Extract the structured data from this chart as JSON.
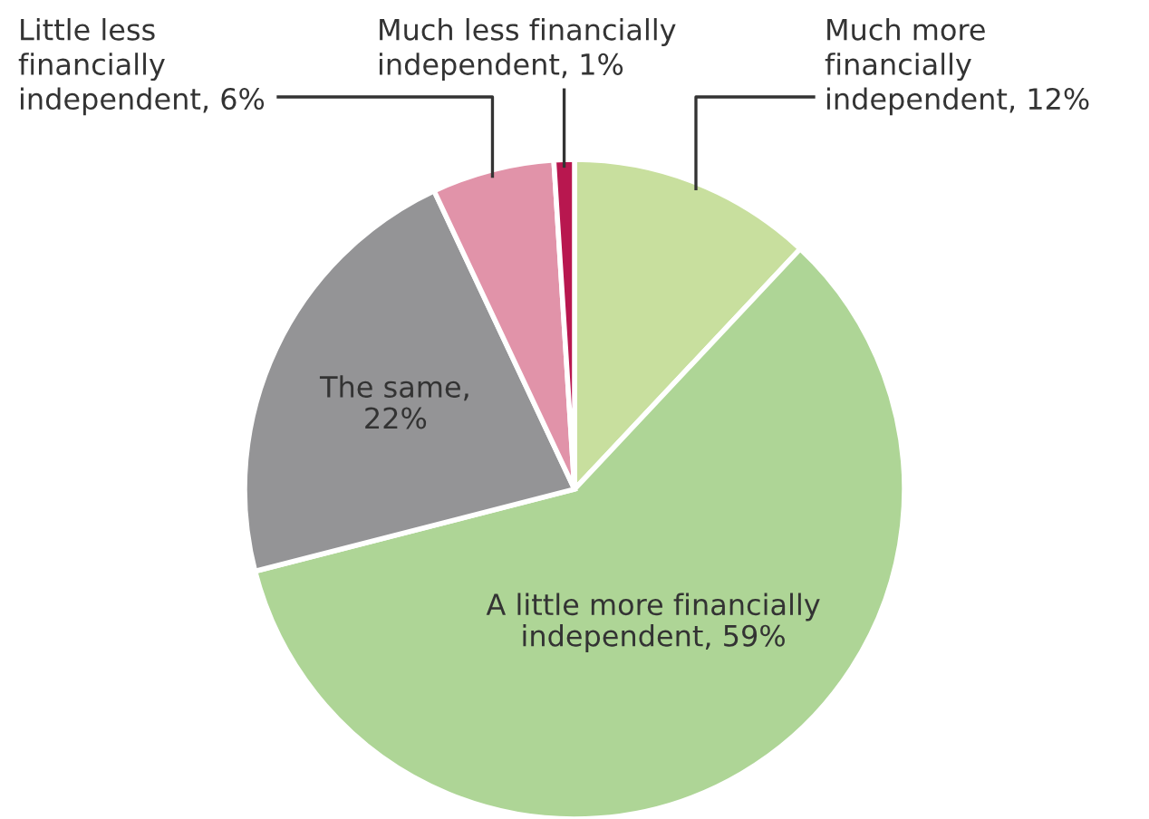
{
  "chart_data": {
    "type": "pie",
    "categories": [
      "Much more\nfinancially\nindependent, 12%",
      "A little more financially\nindependent, 59%",
      "The same,\n22%",
      "Little less\nfinancially\nindependent, 6%",
      "Much less financially\nindependent, 1%"
    ],
    "values": [
      12,
      59,
      22,
      6,
      1
    ],
    "colors": [
      "#c8df9e",
      "#aed596",
      "#949496",
      "#e193a9",
      "#b8174f"
    ],
    "legend": false
  }
}
